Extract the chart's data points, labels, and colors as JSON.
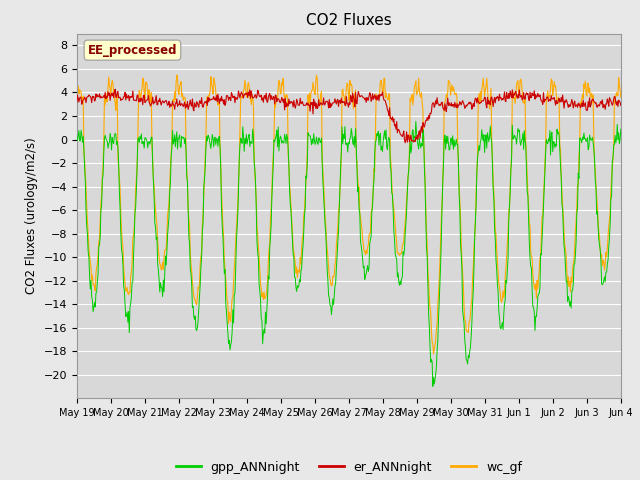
{
  "title": "CO2 Fluxes",
  "ylabel": "CO2 Fluxes (urology/m2/s)",
  "ylim": [
    -22,
    9
  ],
  "bg_color": "#e8e8e8",
  "plot_bg_color": "#d8d8d8",
  "gpp_color": "#00cc00",
  "er_color": "#cc0000",
  "wc_color": "#ffaa00",
  "annotation_text": "EE_processed",
  "annotation_bg": "#ffffcc",
  "annotation_border": "#aaaaaa",
  "n_days": 16,
  "points_per_day": 48,
  "start_day": 19
}
